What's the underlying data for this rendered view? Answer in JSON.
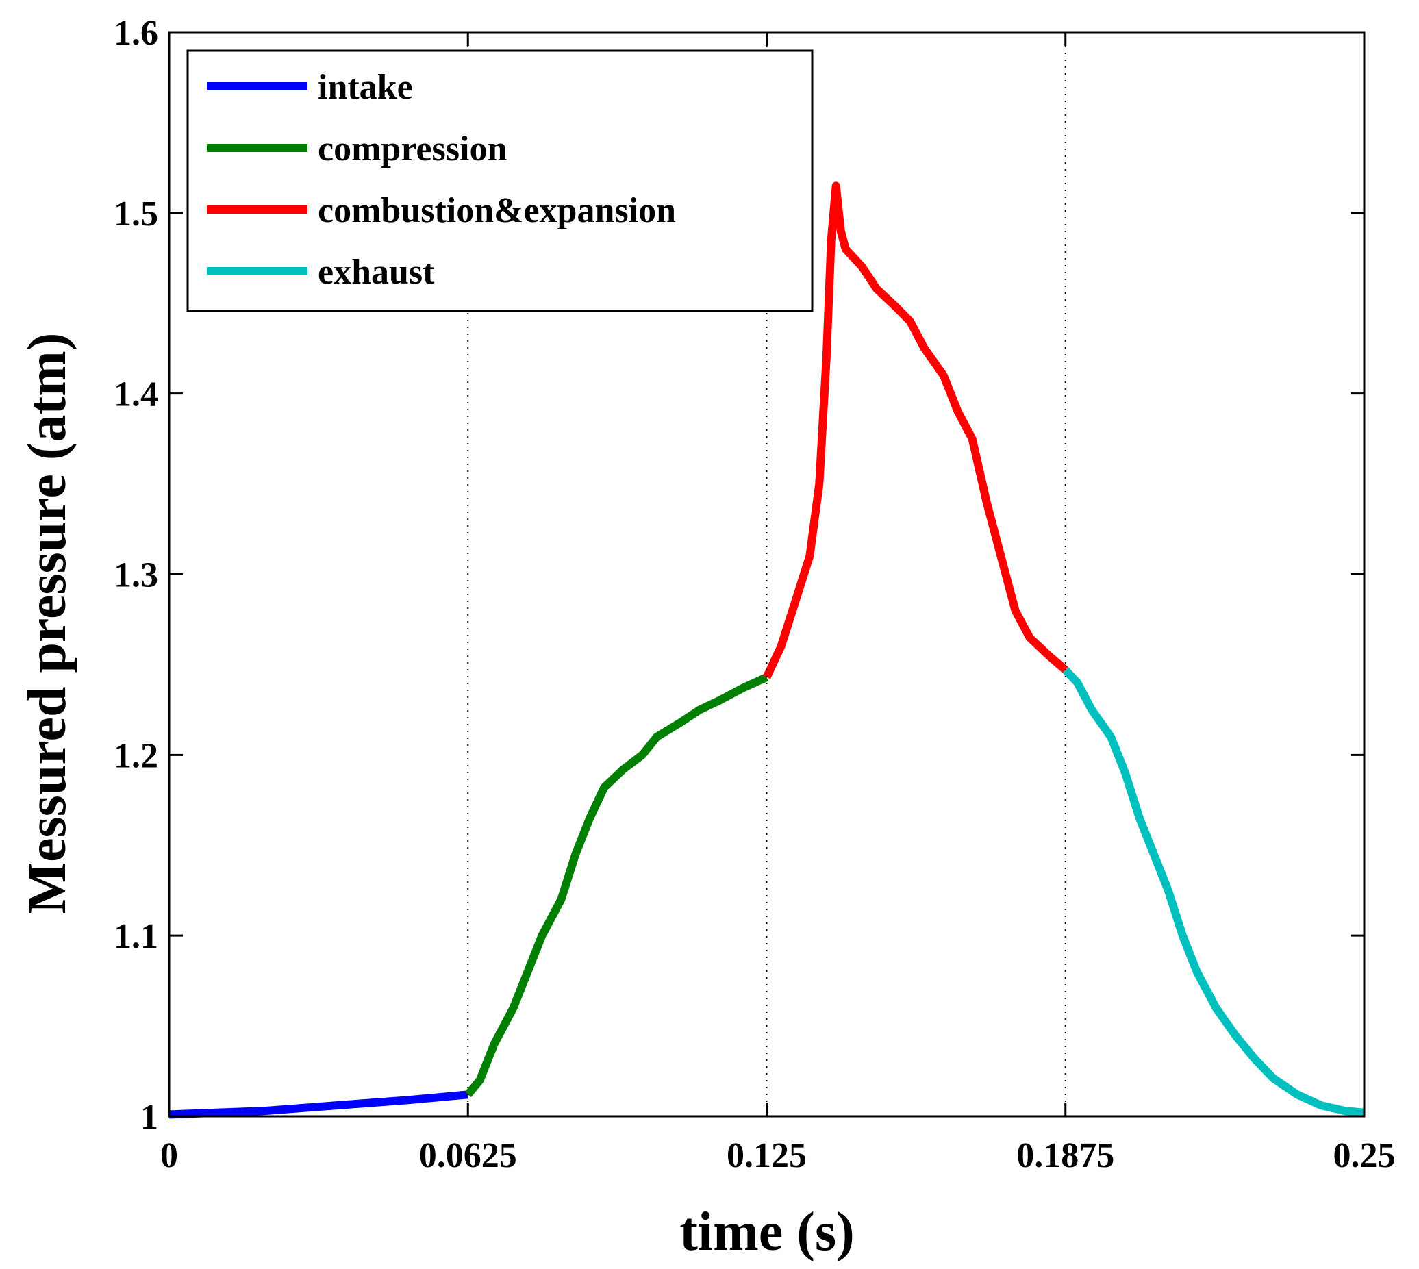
{
  "chart_data": {
    "type": "line",
    "title": "",
    "xlabel": "time (s)",
    "ylabel": "Messured pressure (atm)",
    "xlim": [
      0,
      0.25
    ],
    "ylim": [
      1,
      1.6
    ],
    "xticks": [
      0,
      0.0625,
      0.125,
      0.1875,
      0.25
    ],
    "xtick_labels": [
      "0",
      "0.0625",
      "0.125",
      "0.1875",
      "0.25"
    ],
    "yticks": [
      1,
      1.1,
      1.2,
      1.3,
      1.4,
      1.5,
      1.6
    ],
    "ytick_labels": [
      "1",
      "1.1",
      "1.2",
      "1.3",
      "1.4",
      "1.5",
      "1.6"
    ],
    "grid": false,
    "vertical_reference_lines": [
      0.0625,
      0.125,
      0.1875
    ],
    "legend": {
      "position": "top-left"
    },
    "series": [
      {
        "name": "intake",
        "color": "#0000ff",
        "points": [
          [
            0.0,
            1.001
          ],
          [
            0.01,
            1.002
          ],
          [
            0.02,
            1.003
          ],
          [
            0.03,
            1.005
          ],
          [
            0.04,
            1.007
          ],
          [
            0.05,
            1.009
          ],
          [
            0.0625,
            1.012
          ]
        ]
      },
      {
        "name": "compression",
        "color": "#007f00",
        "points": [
          [
            0.0625,
            1.012
          ],
          [
            0.065,
            1.02
          ],
          [
            0.068,
            1.04
          ],
          [
            0.072,
            1.06
          ],
          [
            0.075,
            1.08
          ],
          [
            0.078,
            1.1
          ],
          [
            0.082,
            1.12
          ],
          [
            0.085,
            1.145
          ],
          [
            0.088,
            1.165
          ],
          [
            0.091,
            1.182
          ],
          [
            0.095,
            1.192
          ],
          [
            0.099,
            1.2
          ],
          [
            0.102,
            1.21
          ],
          [
            0.107,
            1.218
          ],
          [
            0.111,
            1.225
          ],
          [
            0.115,
            1.23
          ],
          [
            0.12,
            1.237
          ],
          [
            0.125,
            1.243
          ]
        ]
      },
      {
        "name": "combustion&expansion",
        "color": "#ff0000",
        "points": [
          [
            0.125,
            1.243
          ],
          [
            0.128,
            1.26
          ],
          [
            0.131,
            1.285
          ],
          [
            0.134,
            1.31
          ],
          [
            0.136,
            1.35
          ],
          [
            0.1375,
            1.42
          ],
          [
            0.1385,
            1.485
          ],
          [
            0.1395,
            1.515
          ],
          [
            0.1405,
            1.49
          ],
          [
            0.1415,
            1.48
          ],
          [
            0.145,
            1.47
          ],
          [
            0.148,
            1.458
          ],
          [
            0.152,
            1.448
          ],
          [
            0.155,
            1.44
          ],
          [
            0.158,
            1.425
          ],
          [
            0.162,
            1.41
          ],
          [
            0.165,
            1.39
          ],
          [
            0.168,
            1.375
          ],
          [
            0.171,
            1.34
          ],
          [
            0.174,
            1.31
          ],
          [
            0.177,
            1.28
          ],
          [
            0.18,
            1.265
          ],
          [
            0.184,
            1.255
          ],
          [
            0.1875,
            1.247
          ]
        ]
      },
      {
        "name": "exhaust",
        "color": "#00bfbf",
        "points": [
          [
            0.1875,
            1.247
          ],
          [
            0.19,
            1.24
          ],
          [
            0.193,
            1.225
          ],
          [
            0.197,
            1.21
          ],
          [
            0.2,
            1.19
          ],
          [
            0.203,
            1.165
          ],
          [
            0.206,
            1.145
          ],
          [
            0.209,
            1.125
          ],
          [
            0.212,
            1.1
          ],
          [
            0.215,
            1.08
          ],
          [
            0.219,
            1.06
          ],
          [
            0.223,
            1.045
          ],
          [
            0.227,
            1.032
          ],
          [
            0.231,
            1.021
          ],
          [
            0.236,
            1.012
          ],
          [
            0.241,
            1.006
          ],
          [
            0.246,
            1.003
          ],
          [
            0.25,
            1.002
          ]
        ]
      }
    ]
  }
}
